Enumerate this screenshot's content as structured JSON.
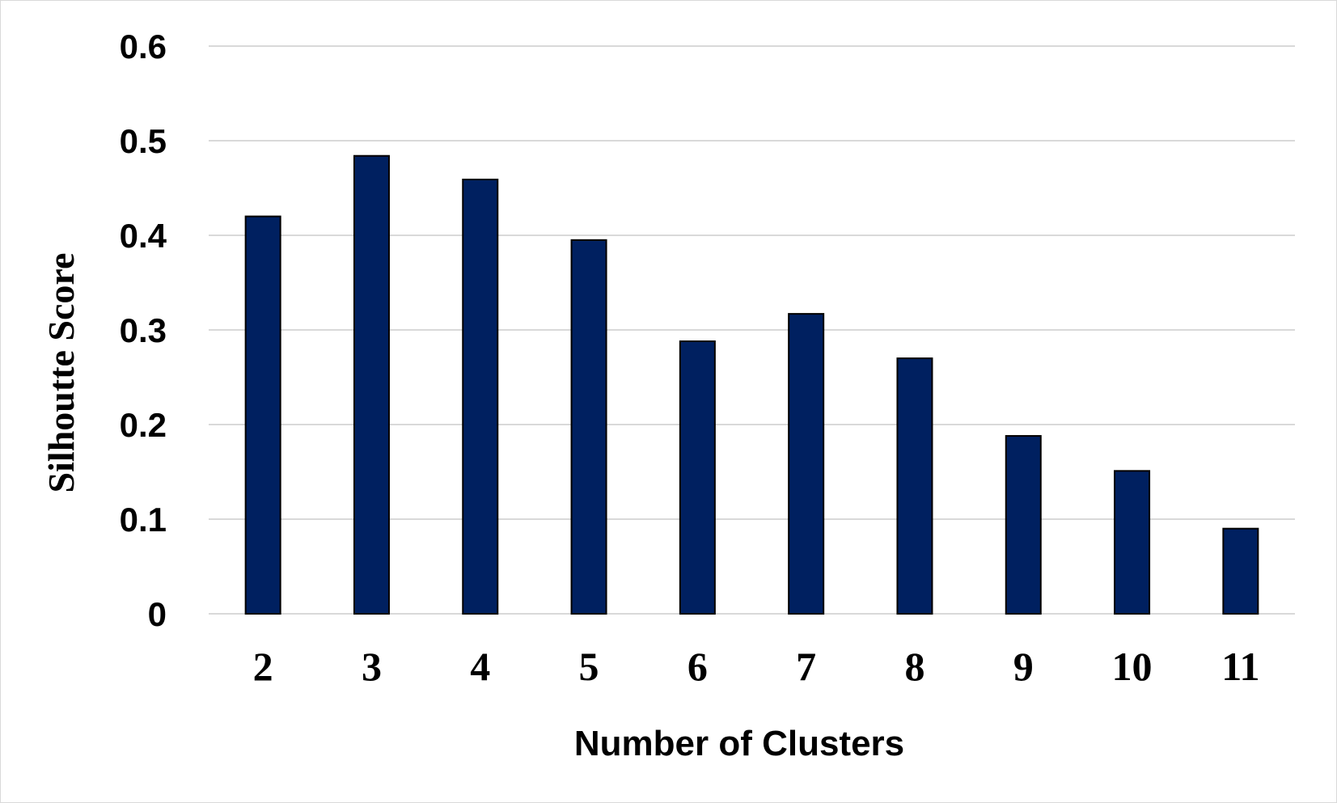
{
  "chart_data": {
    "type": "bar",
    "title": "",
    "xlabel": "Number of Clusters",
    "ylabel": "Silhoutte Score",
    "categories": [
      "2",
      "3",
      "4",
      "5",
      "6",
      "7",
      "8",
      "9",
      "10",
      "11"
    ],
    "values": [
      0.42,
      0.484,
      0.459,
      0.395,
      0.288,
      0.317,
      0.27,
      0.188,
      0.151,
      0.09
    ],
    "ylim": [
      0,
      0.6
    ],
    "yticks": [
      "0",
      "0.1",
      "0.2",
      "0.3",
      "0.4",
      "0.5",
      "0.6"
    ],
    "grid": true,
    "legend": "none",
    "bar_color": "#002060",
    "bar_edge_color": "#000000",
    "grid_color": "#d9d9d9"
  }
}
